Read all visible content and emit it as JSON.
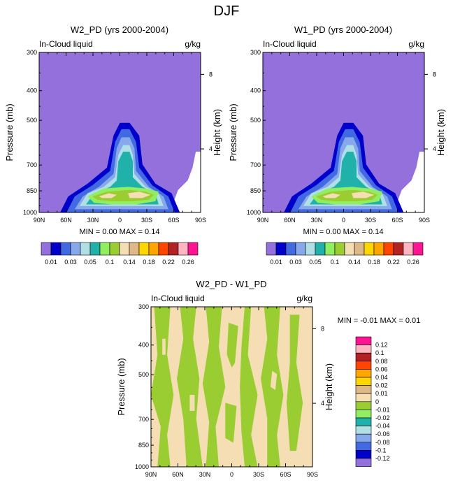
{
  "figure": {
    "title": "DJF"
  },
  "panels": [
    {
      "id": "p1",
      "title": "W2_PD (yrs 2000-2004)",
      "left_label": "In-Cloud liquid",
      "right_label": "g/kg",
      "stats_text": "MIN =   0.00   MAX =   0.14",
      "type": "field"
    },
    {
      "id": "p2",
      "title": "W1_PD (yrs 2000-2004)",
      "left_label": "In-Cloud liquid",
      "right_label": "g/kg",
      "stats_text": "MIN =   0.00   MAX =   0.14",
      "type": "field"
    },
    {
      "id": "p3",
      "title": "W2_PD - W1_PD",
      "left_label": "In-Cloud liquid",
      "right_label": "g/kg",
      "stats_text": "MIN =  -0.01   MAX =   0.01",
      "type": "diff"
    }
  ],
  "axes": {
    "ylabel": "Pressure (mb)",
    "ylabel_right": "Height (km)",
    "pressure_ticks": [
      "300",
      "400",
      "500",
      "700",
      "850",
      "1000"
    ],
    "height_ticks": [
      "8",
      "4"
    ],
    "lat_ticks": [
      "90N",
      "60N",
      "30N",
      "0",
      "30S",
      "60S",
      "90S"
    ]
  },
  "chart_data": [
    {
      "type": "heatmap",
      "name": "W2_PD (yrs 2000-2004)",
      "x": [
        90,
        60,
        30,
        0,
        -30,
        -60,
        -90
      ],
      "xlim": [
        90,
        -90
      ],
      "ylim": [
        1000,
        300
      ],
      "yscale": "log",
      "units": "g/kg",
      "levels": [
        0.01,
        0.02,
        0.03,
        0.04,
        0.05,
        0.06,
        0.08,
        0.1,
        0.12,
        0.14,
        0.16,
        0.18,
        0.2,
        0.22,
        0.24,
        0.26
      ],
      "min": 0.0,
      "max": 0.14,
      "features": "max near 0 lat, 900 mb; cloud layer 1000-500 mb between ~60N and ~65S"
    },
    {
      "type": "heatmap",
      "name": "W1_PD (yrs 2000-2004)",
      "x": [
        90,
        60,
        30,
        0,
        -30,
        -60,
        -90
      ],
      "xlim": [
        90,
        -90
      ],
      "ylim": [
        1000,
        300
      ],
      "yscale": "log",
      "units": "g/kg",
      "levels": [
        0.01,
        0.02,
        0.03,
        0.04,
        0.05,
        0.06,
        0.08,
        0.1,
        0.12,
        0.14,
        0.16,
        0.18,
        0.2,
        0.22,
        0.24,
        0.26
      ],
      "min": 0.0,
      "max": 0.14
    },
    {
      "type": "heatmap",
      "name": "W2_PD - W1_PD",
      "x": [
        90,
        60,
        30,
        0,
        -30,
        -60,
        -90
      ],
      "xlim": [
        90,
        -90
      ],
      "ylim": [
        1000,
        300
      ],
      "yscale": "log",
      "units": "g/kg",
      "levels": [
        -0.12,
        -0.1,
        -0.08,
        -0.06,
        -0.04,
        -0.02,
        -0.01,
        0,
        0.01,
        0.02,
        0.04,
        0.06,
        0.08,
        0.1,
        0.12
      ],
      "min": -0.01,
      "max": 0.01
    }
  ],
  "colorbar_top": {
    "colors": [
      "#9370db",
      "#0000cd",
      "#4169e1",
      "#87a8ea",
      "#b0e0e6",
      "#20b2aa",
      "#90ee60",
      "#9acd32",
      "#f5deb3",
      "#deb887",
      "#ffd700",
      "#ffa500",
      "#ff4500",
      "#b22222",
      "#ffb6c1",
      "#ff1493"
    ],
    "labels": [
      "0.01",
      "0.03",
      "0.05",
      "0.1",
      "0.14",
      "0.18",
      "0.22",
      "0.26"
    ]
  },
  "colorbar_diff": {
    "colors": [
      "#ff1493",
      "#ffb6c1",
      "#b22222",
      "#ff4500",
      "#ffa500",
      "#ffd700",
      "#deb887",
      "#f5deb3",
      "#9acd32",
      "#90ee60",
      "#20b2aa",
      "#b0e0e6",
      "#87a8ea",
      "#4169e1",
      "#0000cd",
      "#9370db"
    ],
    "labels": [
      "0.12",
      "0.1",
      "0.08",
      "0.06",
      "0.04",
      "0.02",
      "0.01",
      "0",
      "-0.01",
      "-0.02",
      "-0.04",
      "-0.06",
      "-0.08",
      "-0.1",
      "-0.12"
    ]
  },
  "palette": {
    "bg": "#9370db",
    "c1": "#0000cd",
    "c2": "#4169e1",
    "c3": "#87a8ea",
    "c4": "#b0e0e6",
    "c5": "#20b2aa",
    "c6": "#90ee60",
    "c7": "#9acd32",
    "c8": "#f5deb3",
    "diff_wheat": "#f5deb3",
    "diff_green": "#9acd32",
    "diff_lime": "#90ee60"
  }
}
